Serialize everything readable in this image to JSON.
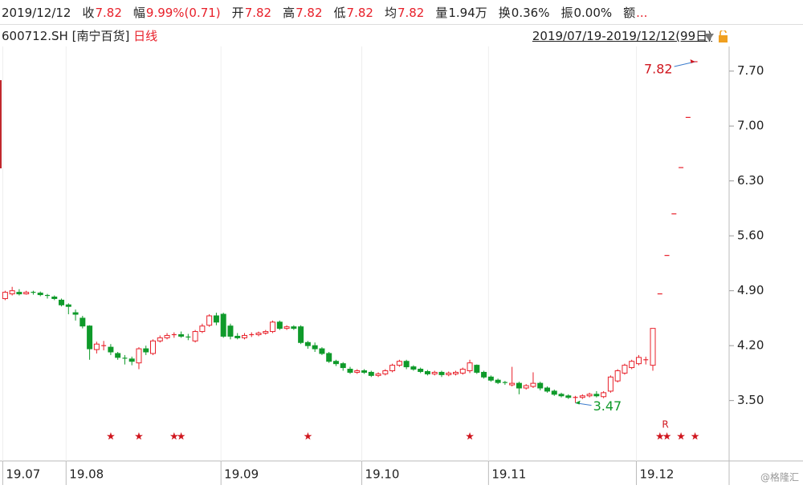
{
  "header": {
    "quote": [
      {
        "label": "2019/12/12"
      },
      {
        "label": "收",
        "value": "7.82",
        "color": "#e8202a"
      },
      {
        "label": "幅",
        "value": "9.99%(0.71)",
        "color": "#e8202a"
      },
      {
        "label": "开",
        "value": "7.82",
        "color": "#e8202a"
      },
      {
        "label": "高",
        "value": "7.82",
        "color": "#e8202a"
      },
      {
        "label": "低",
        "value": "7.82",
        "color": "#e8202a"
      },
      {
        "label": "均",
        "value": "7.82",
        "color": "#e8202a"
      },
      {
        "label": "量",
        "value": "1.94万",
        "color": "#222222"
      },
      {
        "label": "换",
        "value": "0.36%",
        "color": "#222222"
      },
      {
        "label": "振",
        "value": "0.00%",
        "color": "#222222"
      },
      {
        "label": "额",
        "value": "...",
        "color": "#e8202a"
      }
    ],
    "symbol": "600712.SH [南宁百货]",
    "period": "日线",
    "range": "2019/07/19-2019/12/12(99日)"
  },
  "watermark": "@格隆汇",
  "chart_data": {
    "type": "candlestick",
    "up_color": "#e8202a",
    "down_color": "#0f9a2a",
    "categories": [
      "19.07",
      null,
      null,
      null,
      null,
      null,
      null,
      null,
      null,
      "19.08",
      null,
      null,
      null,
      null,
      null,
      null,
      null,
      null,
      null,
      null,
      null,
      null,
      null,
      null,
      null,
      null,
      null,
      null,
      null,
      null,
      null,
      "19.09",
      null,
      null,
      null,
      null,
      null,
      null,
      null,
      null,
      null,
      null,
      null,
      null,
      null,
      null,
      null,
      null,
      null,
      null,
      null,
      "19.10",
      null,
      null,
      null,
      null,
      null,
      null,
      null,
      null,
      null,
      null,
      null,
      null,
      null,
      null,
      null,
      null,
      null,
      "19.11",
      null,
      null,
      null,
      null,
      null,
      null,
      null,
      null,
      null,
      null,
      null,
      null,
      null,
      null,
      null,
      null,
      null,
      null,
      null,
      null,
      "19.12",
      null,
      null,
      null,
      null,
      null,
      null,
      null,
      null
    ],
    "open": [
      4.8,
      4.86,
      4.88,
      4.86,
      4.88,
      4.87,
      4.84,
      4.82,
      4.78,
      4.72,
      4.62,
      4.55,
      4.45,
      4.15,
      4.2,
      4.18,
      4.1,
      4.04,
      4.03,
      3.98,
      4.16,
      4.1,
      4.26,
      4.3,
      4.33,
      4.34,
      4.31,
      4.26,
      4.38,
      4.46,
      4.58,
      4.6,
      4.45,
      4.32,
      4.3,
      4.33,
      4.34,
      4.36,
      4.38,
      4.5,
      4.42,
      4.44,
      4.44,
      4.24,
      4.2,
      4.16,
      4.1,
      4.0,
      3.97,
      3.9,
      3.86,
      3.88,
      3.86,
      3.82,
      3.84,
      3.88,
      3.95,
      4.0,
      3.93,
      3.9,
      3.87,
      3.84,
      3.86,
      3.83,
      3.84,
      3.85,
      3.88,
      3.95,
      3.86,
      3.8,
      3.76,
      3.73,
      3.7,
      3.72,
      3.66,
      3.68,
      3.72,
      3.66,
      3.62,
      3.58,
      3.56,
      3.53,
      3.54,
      3.56,
      3.58,
      3.55,
      3.62,
      3.75,
      3.85,
      3.92,
      3.97,
      4.02,
      3.95,
      4.86,
      5.35,
      5.88,
      6.47,
      7.11,
      7.82
    ],
    "high": [
      4.9,
      4.95,
      4.92,
      4.9,
      4.9,
      4.89,
      4.86,
      4.84,
      4.8,
      4.74,
      4.66,
      4.58,
      4.46,
      4.25,
      4.26,
      4.22,
      4.12,
      4.08,
      4.06,
      4.18,
      4.2,
      4.28,
      4.33,
      4.36,
      4.37,
      4.38,
      4.35,
      4.4,
      4.48,
      4.6,
      4.62,
      4.62,
      4.48,
      4.36,
      4.36,
      4.37,
      4.38,
      4.4,
      4.52,
      4.52,
      4.46,
      4.46,
      4.46,
      4.26,
      4.24,
      4.18,
      4.12,
      4.02,
      3.99,
      3.93,
      3.9,
      3.9,
      3.88,
      3.86,
      3.9,
      3.97,
      4.02,
      4.02,
      3.95,
      3.92,
      3.89,
      3.88,
      3.88,
      3.87,
      3.88,
      3.92,
      4.02,
      3.96,
      3.88,
      3.82,
      3.78,
      3.75,
      3.93,
      3.74,
      3.71,
      3.86,
      3.74,
      3.68,
      3.64,
      3.6,
      3.58,
      3.56,
      3.58,
      3.6,
      3.62,
      3.62,
      3.82,
      3.9,
      3.97,
      4.02,
      4.08,
      4.06,
      4.42,
      4.86,
      5.35,
      5.88,
      6.47,
      7.11,
      7.82
    ],
    "low": [
      4.78,
      4.84,
      4.84,
      4.85,
      4.85,
      4.83,
      4.8,
      4.78,
      4.7,
      4.6,
      4.52,
      4.42,
      4.02,
      4.1,
      4.14,
      4.08,
      4.02,
      3.96,
      3.95,
      3.9,
      4.08,
      4.08,
      4.24,
      4.28,
      4.3,
      4.3,
      4.27,
      4.24,
      4.36,
      4.44,
      4.46,
      4.3,
      4.28,
      4.28,
      4.28,
      4.31,
      4.32,
      4.34,
      4.36,
      4.4,
      4.4,
      4.4,
      4.22,
      4.16,
      4.12,
      4.08,
      3.98,
      3.94,
      3.88,
      3.84,
      3.84,
      3.84,
      3.8,
      3.8,
      3.82,
      3.86,
      3.93,
      3.9,
      3.88,
      3.85,
      3.82,
      3.82,
      3.8,
      3.81,
      3.82,
      3.83,
      3.85,
      3.84,
      3.78,
      3.74,
      3.71,
      3.7,
      3.68,
      3.58,
      3.64,
      3.66,
      3.63,
      3.6,
      3.56,
      3.54,
      3.52,
      3.47,
      3.52,
      3.54,
      3.54,
      3.53,
      3.6,
      3.73,
      3.83,
      3.9,
      3.95,
      3.96,
      3.88,
      4.86,
      5.35,
      5.88,
      6.47,
      7.11,
      7.82
    ],
    "close": [
      4.88,
      4.9,
      4.86,
      4.88,
      4.87,
      4.85,
      4.83,
      4.8,
      4.72,
      4.7,
      4.6,
      4.45,
      4.16,
      4.22,
      4.2,
      4.12,
      4.05,
      4.03,
      4.0,
      4.16,
      4.12,
      4.26,
      4.3,
      4.33,
      4.34,
      4.32,
      4.3,
      4.38,
      4.45,
      4.58,
      4.5,
      4.32,
      4.32,
      4.3,
      4.33,
      4.34,
      4.36,
      4.38,
      4.5,
      4.42,
      4.44,
      4.42,
      4.24,
      4.2,
      4.16,
      4.1,
      4.0,
      3.97,
      3.92,
      3.86,
      3.88,
      3.86,
      3.82,
      3.84,
      3.88,
      3.95,
      4.0,
      3.93,
      3.9,
      3.87,
      3.84,
      3.86,
      3.83,
      3.85,
      3.86,
      3.9,
      3.98,
      3.86,
      3.8,
      3.76,
      3.73,
      3.72,
      3.72,
      3.66,
      3.69,
      3.72,
      3.66,
      3.62,
      3.58,
      3.56,
      3.54,
      3.54,
      3.56,
      3.58,
      3.56,
      3.6,
      3.8,
      3.88,
      3.95,
      4.0,
      4.05,
      4.02,
      4.42,
      4.86,
      5.35,
      5.88,
      6.47,
      7.11,
      7.82
    ],
    "signals": [
      null,
      null,
      null,
      null,
      null,
      null,
      null,
      null,
      null,
      null,
      null,
      null,
      null,
      null,
      null,
      "★",
      null,
      null,
      null,
      "★",
      null,
      null,
      null,
      null,
      "★",
      "★",
      null,
      null,
      null,
      null,
      null,
      null,
      null,
      null,
      null,
      null,
      null,
      null,
      null,
      null,
      null,
      null,
      null,
      "★",
      null,
      null,
      null,
      null,
      null,
      null,
      null,
      null,
      null,
      null,
      null,
      null,
      null,
      null,
      null,
      null,
      null,
      null,
      null,
      null,
      null,
      null,
      "★",
      null,
      null,
      null,
      null,
      null,
      null,
      null,
      null,
      null,
      null,
      null,
      null,
      null,
      null,
      null,
      null,
      null,
      null,
      null,
      null,
      null,
      null,
      null,
      null,
      null,
      null,
      "★",
      "★",
      null,
      "★",
      null,
      "★"
    ],
    "tags": [
      null,
      null,
      null,
      null,
      null,
      null,
      null,
      null,
      null,
      null,
      null,
      null,
      null,
      null,
      null,
      null,
      null,
      null,
      null,
      null,
      null,
      null,
      null,
      null,
      null,
      null,
      null,
      null,
      null,
      null,
      null,
      null,
      null,
      null,
      null,
      null,
      null,
      null,
      null,
      null,
      null,
      null,
      null,
      null,
      null,
      null,
      null,
      null,
      null,
      null,
      null,
      null,
      null,
      null,
      null,
      null,
      null,
      null,
      null,
      null,
      null,
      null,
      null,
      null,
      null,
      null,
      null,
      null,
      null,
      null,
      null,
      null,
      null,
      null,
      null,
      null,
      null,
      null,
      null,
      null,
      null,
      null,
      null,
      null,
      null,
      null,
      null,
      null,
      null,
      null,
      null,
      null,
      null,
      null,
      "R",
      null,
      null,
      null,
      null
    ],
    "max_label": "7.82",
    "min_label": "3.47",
    "ylim": [
      2.73,
      8.3
    ],
    "yticks": [
      {
        "value": 3.5,
        "label": "3.50"
      },
      {
        "value": 4.2,
        "label": "4.20"
      },
      {
        "value": 4.9,
        "label": "4.90"
      },
      {
        "value": 5.6,
        "label": "5.60"
      },
      {
        "value": 6.3,
        "label": "6.30"
      },
      {
        "value": 7.0,
        "label": "7.00"
      },
      {
        "value": 7.7,
        "label": "7.70"
      }
    ]
  }
}
